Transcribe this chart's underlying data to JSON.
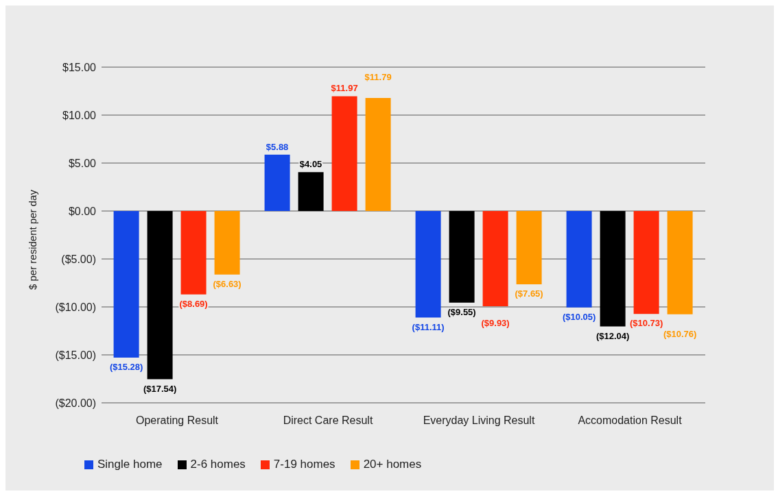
{
  "chart_data": {
    "type": "bar",
    "ylabel": "$ per resident per day",
    "categories": [
      "Operating Result",
      "Direct Care Result",
      "Everyday Living Result",
      "Accomodation Result"
    ],
    "series": [
      {
        "name": "Single home",
        "color": "#1447e6",
        "values": [
          -15.28,
          5.88,
          -11.11,
          -10.05
        ],
        "value_labels": [
          "($15.28)",
          "$5.88",
          "($11.11)",
          "($10.05)"
        ]
      },
      {
        "name": "2-6 homes",
        "color": "#000000",
        "values": [
          -17.54,
          4.05,
          -9.55,
          -12.04
        ],
        "value_labels": [
          "($17.54)",
          "$4.05",
          "($9.55)",
          "($12.04)"
        ]
      },
      {
        "name": "7-19 homes",
        "color": "#ff2a0a",
        "values": [
          -8.69,
          11.97,
          -9.93,
          -10.73
        ],
        "value_labels": [
          "($8.69)",
          "$11.97",
          "($9.93)",
          "($10.73)"
        ]
      },
      {
        "name": "20+ homes",
        "color": "#ff9900",
        "values": [
          -6.63,
          11.79,
          -7.65,
          -10.76
        ],
        "value_labels": [
          "($6.63)",
          "$11.79",
          "($7.65)",
          "($10.76)"
        ]
      }
    ],
    "ylim": [
      -20,
      15
    ],
    "yticks": [
      {
        "value": -20,
        "label": "($20.00)"
      },
      {
        "value": -15,
        "label": "($15.00)"
      },
      {
        "value": -10,
        "label": "($10.00)"
      },
      {
        "value": -5,
        "label": "($5.00)"
      },
      {
        "value": 0,
        "label": "$0.00"
      },
      {
        "value": 5,
        "label": "$5.00"
      },
      {
        "value": 10,
        "label": "$10.00"
      },
      {
        "value": 15,
        "label": "$15.00"
      }
    ],
    "grid": "y",
    "legend": "bottom left"
  }
}
